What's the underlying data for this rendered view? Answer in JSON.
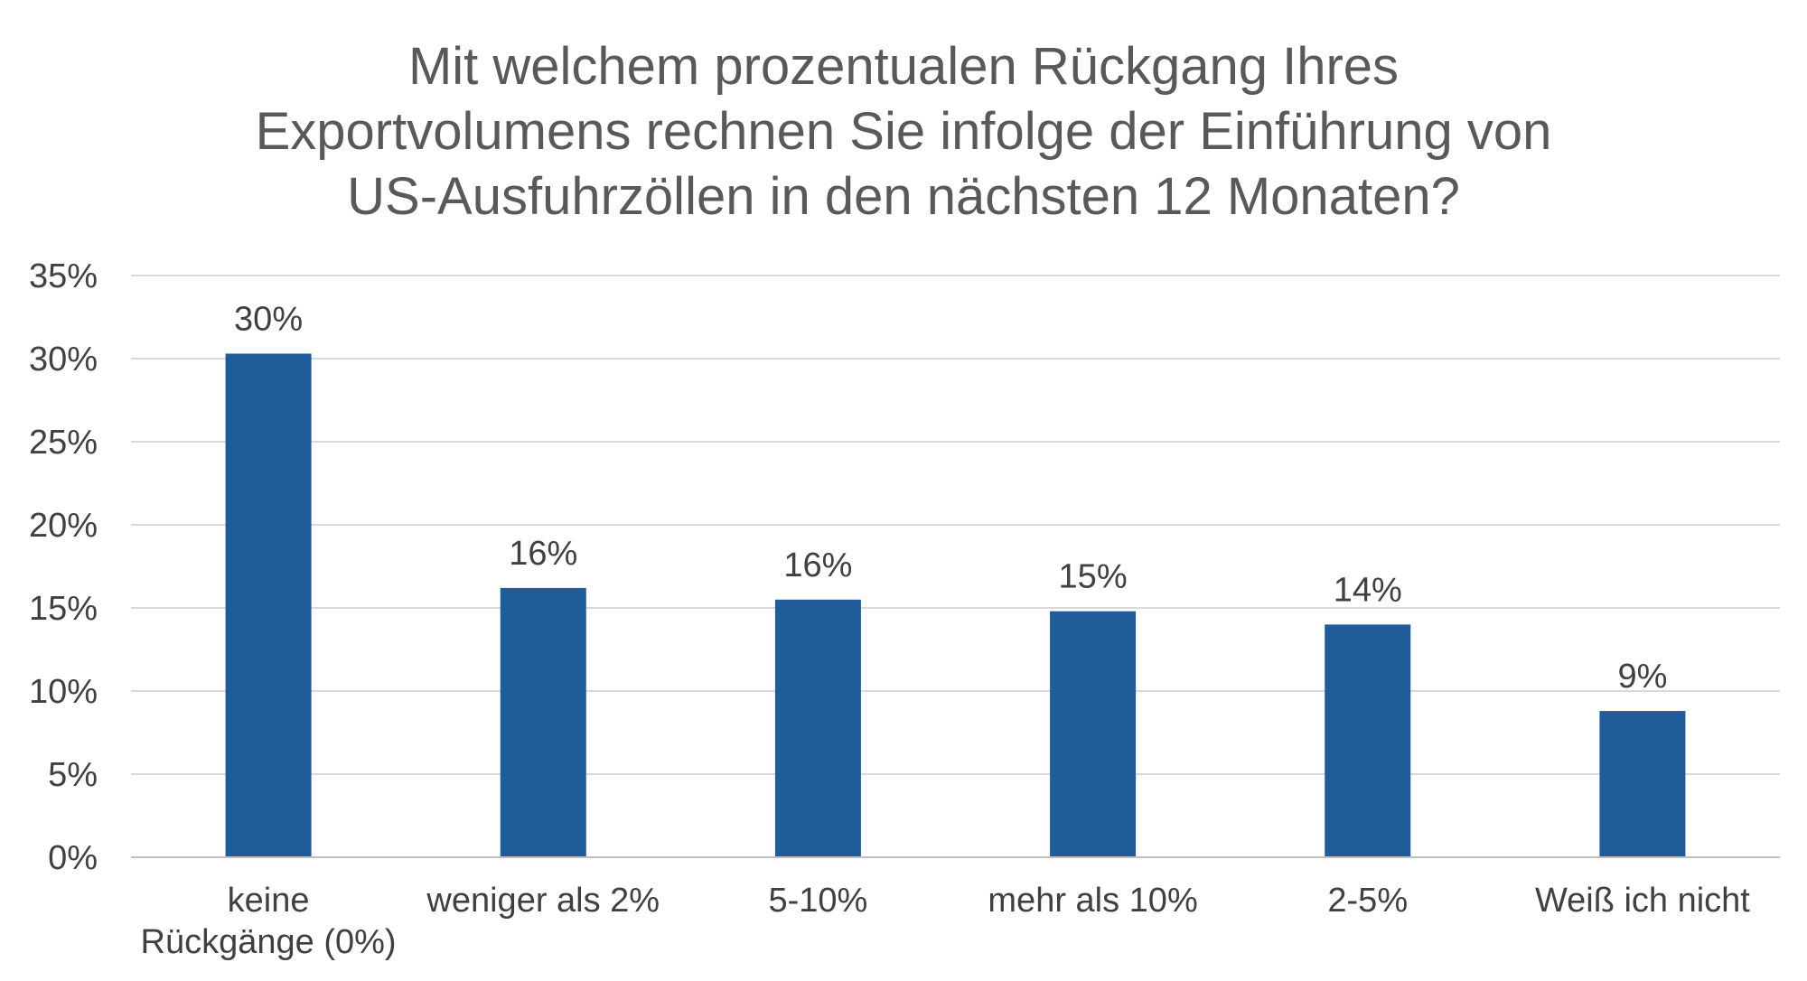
{
  "chart_data": {
    "type": "bar",
    "title_lines": [
      "Mit welchem prozentualen Rückgang Ihres",
      "Exportvolumens rechnen Sie infolge der Einführung von",
      "US-Ausfuhrzöllen in den nächsten 12 Monaten?"
    ],
    "categories": [
      [
        "keine",
        "Rückgänge (0%)"
      ],
      [
        "weniger als 2%"
      ],
      [
        "5-10%"
      ],
      [
        "mehr als 10%"
      ],
      [
        "2-5%"
      ],
      [
        "Weiß ich nicht"
      ]
    ],
    "values": [
      30.3,
      16.2,
      15.5,
      14.8,
      14.0,
      8.8
    ],
    "data_labels": [
      "30%",
      "16%",
      "16%",
      "15%",
      "14%",
      "9%"
    ],
    "y_ticks": [
      0,
      5,
      10,
      15,
      20,
      25,
      30,
      35
    ],
    "y_tick_labels": [
      "0%",
      "5%",
      "10%",
      "15%",
      "20%",
      "25%",
      "30%",
      "35%"
    ],
    "ylim": [
      0,
      35
    ],
    "grid": true,
    "legend": "none",
    "colors": {
      "bar": "#1F5C99",
      "grid": "#D9D9D9",
      "axis": "#BFBFBF",
      "title": "#595959",
      "label": "#404040"
    }
  }
}
